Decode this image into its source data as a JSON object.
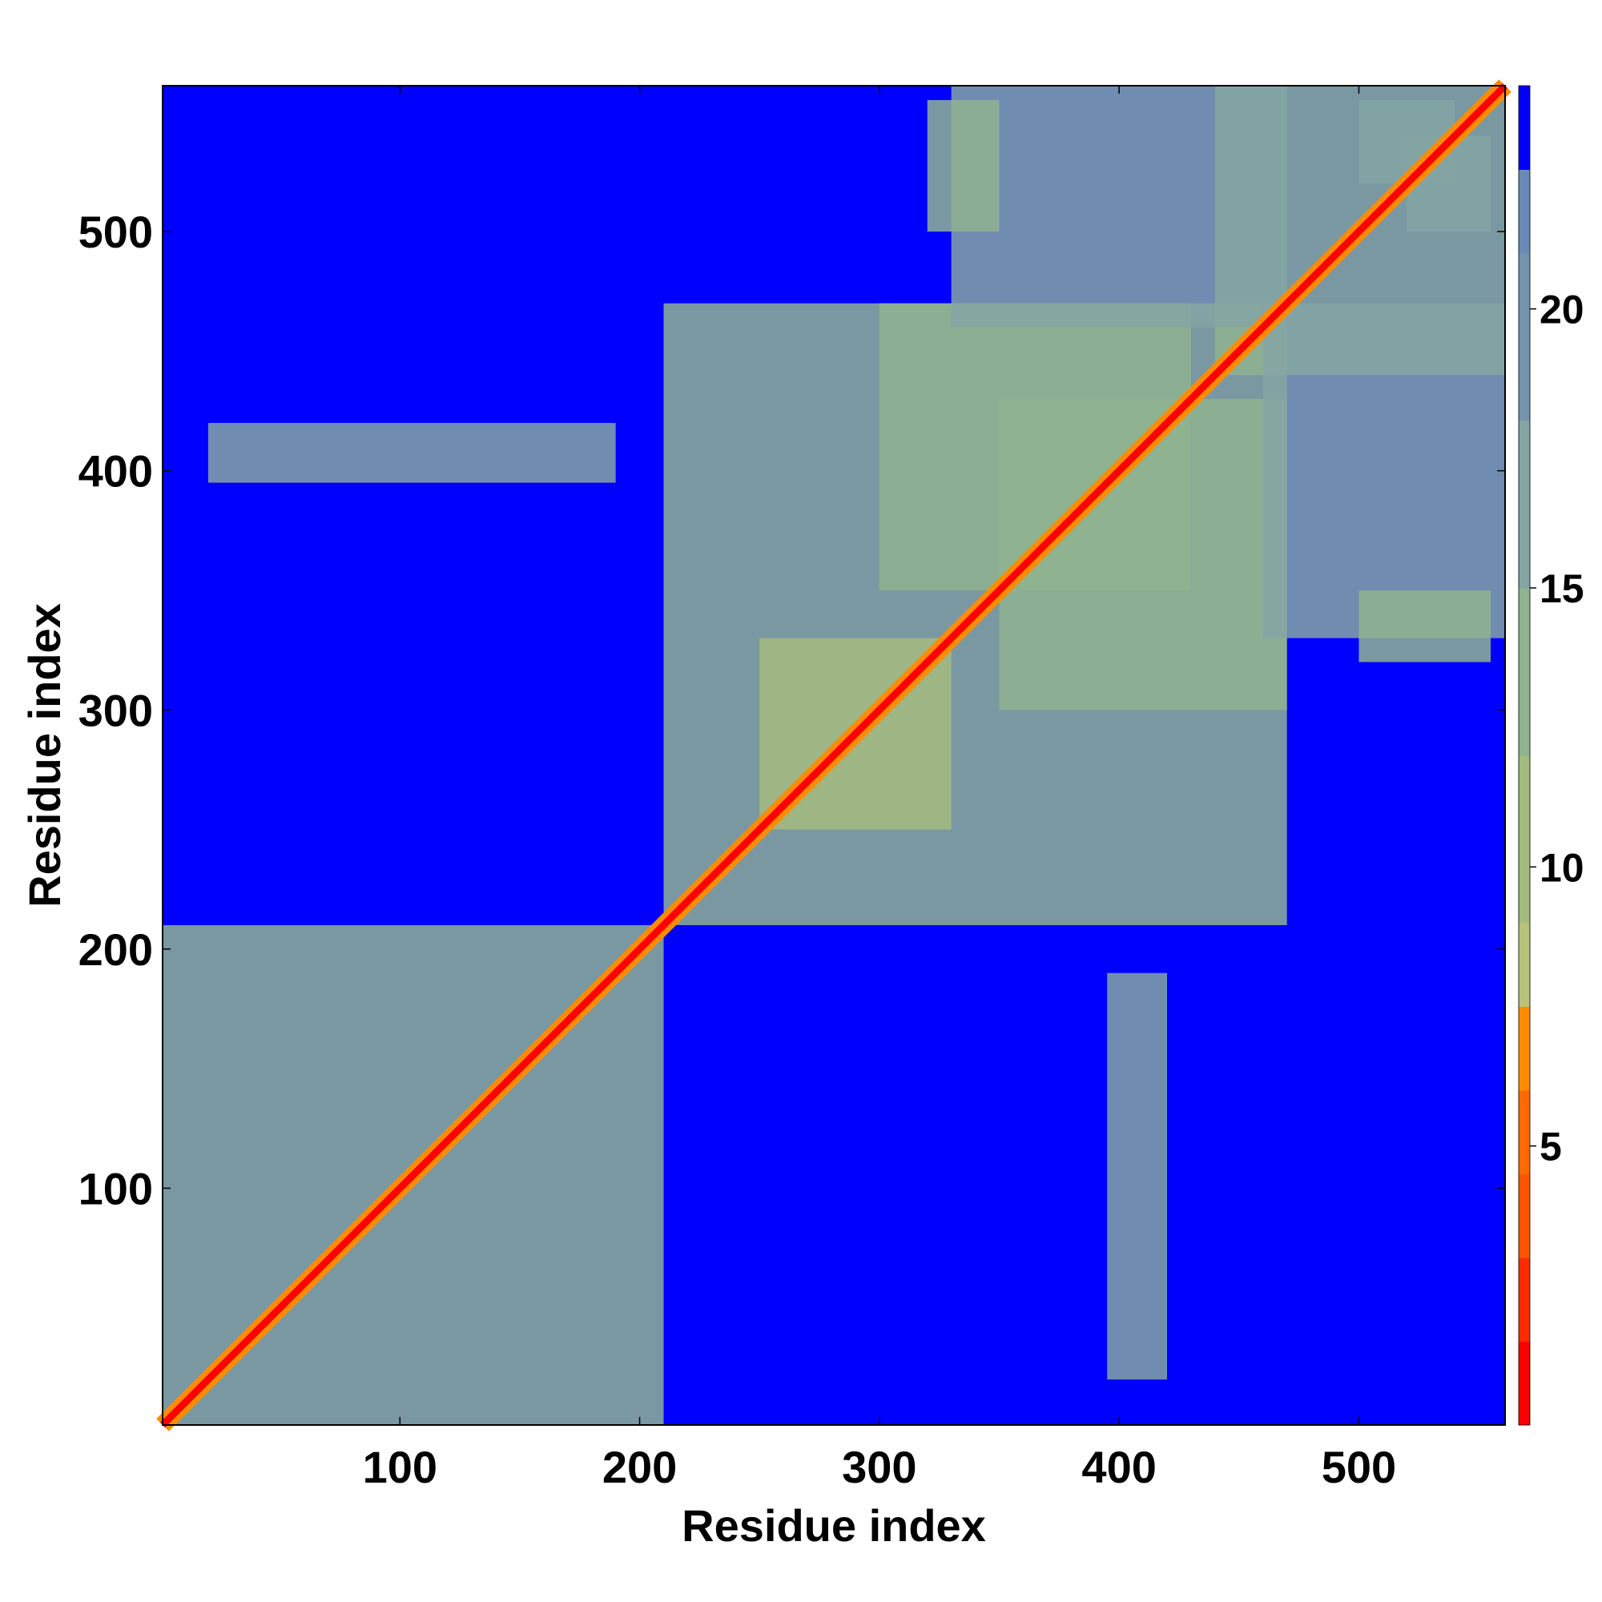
{
  "chart_data": {
    "type": "heatmap",
    "title": "",
    "xlabel": "Residue index",
    "ylabel": "Residue index",
    "xlim": [
      1,
      561
    ],
    "ylim": [
      1,
      561
    ],
    "x_ticks": [
      100,
      200,
      300,
      400,
      500
    ],
    "y_ticks": [
      100,
      200,
      300,
      400,
      500
    ],
    "x_tick_labels": [
      "100",
      "200",
      "300",
      "400",
      "500"
    ],
    "y_tick_labels": [
      "100",
      "200",
      "300",
      "400",
      "500"
    ],
    "colorbar": {
      "range": [
        0,
        24
      ],
      "ticks": [
        5,
        10,
        15,
        20
      ],
      "tick_labels": [
        "5",
        "10",
        "15",
        "20"
      ],
      "levels": [
        {
          "from": 0,
          "to": 1.5,
          "color": "#ff0000"
        },
        {
          "from": 1.5,
          "to": 3,
          "color": "#ff2a00"
        },
        {
          "from": 3,
          "to": 4.5,
          "color": "#ff5500"
        },
        {
          "from": 4.5,
          "to": 6,
          "color": "#ff6a00"
        },
        {
          "from": 6,
          "to": 7.5,
          "color": "#ff8c00"
        },
        {
          "from": 7.5,
          "to": 9,
          "color": "#b8c27a"
        },
        {
          "from": 9,
          "to": 12,
          "color": "#a3bb7e"
        },
        {
          "from": 12,
          "to": 15,
          "color": "#8fb390"
        },
        {
          "from": 15,
          "to": 18,
          "color": "#84a5a3"
        },
        {
          "from": 18,
          "to": 21,
          "color": "#7595ae"
        },
        {
          "from": 21,
          "to": 22.5,
          "color": "#6a8ab8"
        },
        {
          "from": 22.5,
          "to": 24,
          "color": "#0000ff"
        }
      ]
    },
    "background_color": "#0000ff",
    "background_value": 24,
    "diagonal": {
      "from": 1,
      "to": 561,
      "value": 1
    },
    "contact_regions": [
      {
        "x": [
          1,
          210
        ],
        "y": [
          1,
          210
        ],
        "value": 12
      },
      {
        "x": [
          210,
          470
        ],
        "y": [
          210,
          470
        ],
        "value": 13
      },
      {
        "x": [
          440,
          561
        ],
        "y": [
          440,
          561
        ],
        "value": 12
      },
      {
        "x": [
          250,
          330
        ],
        "y": [
          250,
          330
        ],
        "value": 11
      },
      {
        "x": [
          350,
          470
        ],
        "y": [
          300,
          430
        ],
        "value": 14
      },
      {
        "x": [
          300,
          430
        ],
        "y": [
          350,
          470
        ],
        "value": 14
      },
      {
        "x": [
          460,
          561
        ],
        "y": [
          330,
          470
        ],
        "value": 15
      },
      {
        "x": [
          330,
          470
        ],
        "y": [
          460,
          561
        ],
        "value": 15
      },
      {
        "x": [
          320,
          350
        ],
        "y": [
          500,
          555
        ],
        "value": 13
      },
      {
        "x": [
          500,
          555
        ],
        "y": [
          320,
          350
        ],
        "value": 13
      },
      {
        "x": [
          395,
          420
        ],
        "y": [
          20,
          190
        ],
        "value": 15
      },
      {
        "x": [
          20,
          190
        ],
        "y": [
          395,
          420
        ],
        "value": 15
      },
      {
        "x": [
          500,
          540
        ],
        "y": [
          520,
          555
        ],
        "value": 16
      },
      {
        "x": [
          520,
          555
        ],
        "y": [
          500,
          540
        ],
        "value": 16
      }
    ],
    "grid": false,
    "legend": "none"
  }
}
